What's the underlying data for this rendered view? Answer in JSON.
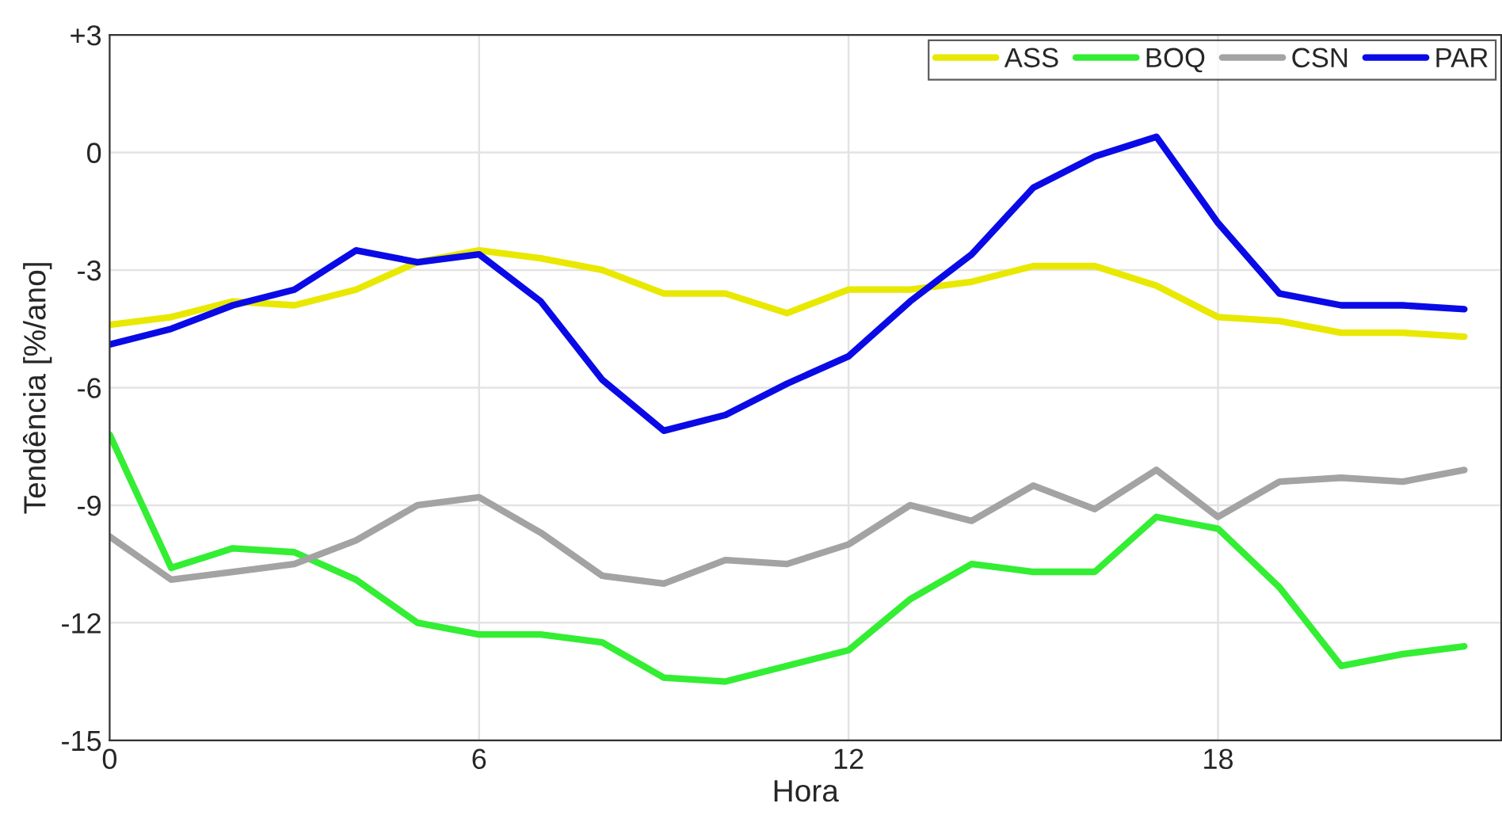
{
  "chart_data": {
    "type": "line",
    "xlabel": "Hora",
    "ylabel": "Tendência [%/ano]",
    "x": [
      0,
      1,
      2,
      3,
      4,
      5,
      6,
      7,
      8,
      9,
      10,
      11,
      12,
      13,
      14,
      15,
      16,
      17,
      18,
      19,
      20,
      21,
      22
    ],
    "series": [
      {
        "name": "ASS",
        "color": "#e8e800",
        "values": [
          -4.4,
          -4.2,
          -3.8,
          -3.9,
          -3.5,
          -2.8,
          -2.5,
          -2.7,
          -3.0,
          -3.6,
          -3.6,
          -4.1,
          -3.5,
          -3.5,
          -3.3,
          -2.9,
          -2.9,
          -3.4,
          -4.2,
          -4.3,
          -4.6,
          -4.6,
          -4.7
        ]
      },
      {
        "name": "BOQ",
        "color": "#33ee33",
        "values": [
          -7.2,
          -10.6,
          -10.1,
          -10.2,
          -10.9,
          -12.0,
          -12.3,
          -12.3,
          -12.5,
          -13.4,
          -13.5,
          -13.1,
          -12.7,
          -11.4,
          -10.5,
          -10.7,
          -10.7,
          -9.3,
          -9.6,
          -11.1,
          -13.1,
          -12.8,
          -12.6
        ]
      },
      {
        "name": "CSN",
        "color": "#a3a3a3",
        "values": [
          -9.8,
          -10.9,
          -10.7,
          -10.5,
          -9.9,
          -9.0,
          -8.8,
          -9.7,
          -10.8,
          -11.0,
          -10.4,
          -10.5,
          -10.0,
          -9.0,
          -9.4,
          -8.5,
          -9.1,
          -8.1,
          -9.3,
          -8.4,
          -8.3,
          -8.4,
          -8.1
        ]
      },
      {
        "name": "PAR",
        "color": "#0a0ae6",
        "values": [
          -4.9,
          -4.5,
          -3.9,
          -3.5,
          -2.5,
          -2.8,
          -2.6,
          -3.8,
          -5.8,
          -7.1,
          -6.7,
          -5.9,
          -5.2,
          -3.8,
          -2.6,
          -0.9,
          -0.1,
          0.4,
          -1.8,
          -3.6,
          -3.9,
          -3.9,
          -4.0
        ]
      }
    ],
    "xlim": [
      0,
      22.6
    ],
    "xticks": [
      0,
      6,
      12,
      18
    ],
    "ylim": [
      -15,
      3
    ],
    "yticks": [
      {
        "value": 3,
        "label": "+3"
      },
      0,
      -3,
      -6,
      -9,
      -12,
      -15
    ],
    "grid": true,
    "legend": "top right",
    "line_style": "solid"
  }
}
